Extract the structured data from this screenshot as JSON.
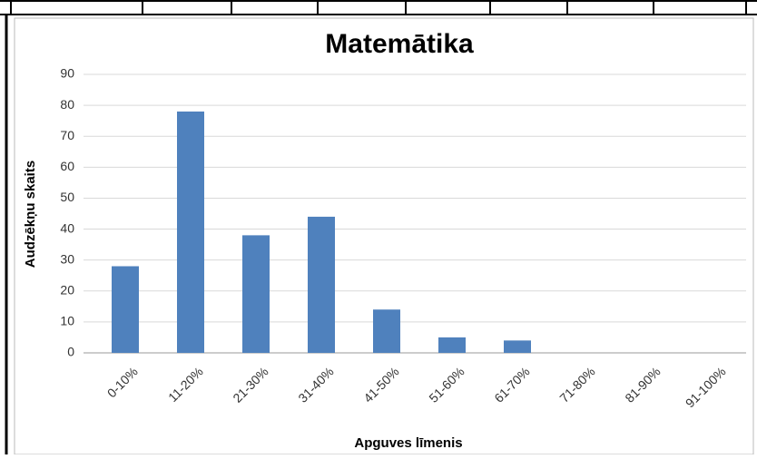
{
  "chart_data": {
    "type": "bar",
    "title": "Matemātika",
    "y_label": "Audzēkņu skaits",
    "x_label": "Apguves līmenis",
    "categories": [
      "0-10%",
      "11-20%",
      "21-30%",
      "31-40%",
      "41-50%",
      "51-60%",
      "61-70%",
      "71-80%",
      "81-90%",
      "91-100%"
    ],
    "values": [
      28,
      78,
      38,
      44,
      14,
      5,
      4,
      0,
      0,
      0
    ],
    "color": "#4f81bd",
    "ylim": [
      0,
      90
    ],
    "yticks": [
      0,
      10,
      20,
      30,
      40,
      50,
      60,
      70,
      80,
      90
    ],
    "grid": true
  }
}
